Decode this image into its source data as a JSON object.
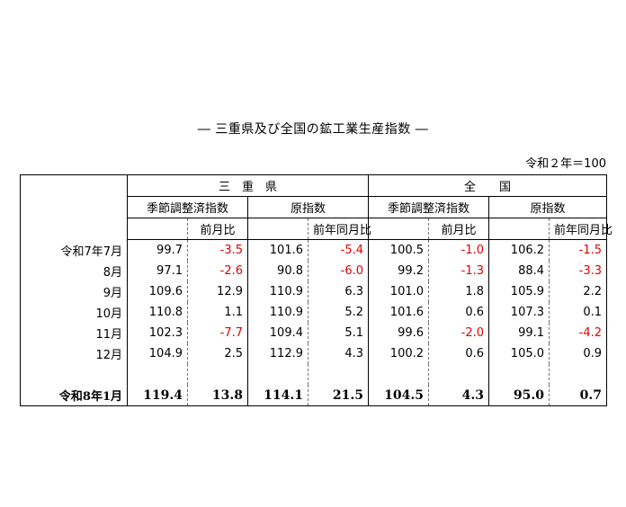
{
  "title": "― 三重県及び全国の鉱工業生産指数 ―",
  "base_note": "令和２年＝100",
  "headers": {
    "region_mie": "三　重　県",
    "region_national": "全　　国",
    "seasonally_adjusted": "季節調整済指数",
    "original": "原指数",
    "mom": "前月比",
    "yoy": "前年同月比"
  },
  "rows": [
    {
      "label": "令和7年7月",
      "mie_sa": "99.7",
      "mie_mom": "-3.5",
      "mie_orig": "101.6",
      "mie_yoy": "-5.4",
      "nat_sa": "100.5",
      "nat_mom": "-1.0",
      "nat_orig": "106.2",
      "nat_yoy": "-1.5"
    },
    {
      "label": "8月",
      "mie_sa": "97.1",
      "mie_mom": "-2.6",
      "mie_orig": "90.8",
      "mie_yoy": "-6.0",
      "nat_sa": "99.2",
      "nat_mom": "-1.3",
      "nat_orig": "88.4",
      "nat_yoy": "-3.3"
    },
    {
      "label": "9月",
      "mie_sa": "109.6",
      "mie_mom": "12.9",
      "mie_orig": "110.9",
      "mie_yoy": "6.3",
      "nat_sa": "101.0",
      "nat_mom": "1.8",
      "nat_orig": "105.9",
      "nat_yoy": "2.2"
    },
    {
      "label": "10月",
      "mie_sa": "110.8",
      "mie_mom": "1.1",
      "mie_orig": "110.9",
      "mie_yoy": "5.2",
      "nat_sa": "101.6",
      "nat_mom": "0.6",
      "nat_orig": "107.3",
      "nat_yoy": "0.1"
    },
    {
      "label": "11月",
      "mie_sa": "102.3",
      "mie_mom": "-7.7",
      "mie_orig": "109.4",
      "mie_yoy": "5.1",
      "nat_sa": "99.6",
      "nat_mom": "-2.0",
      "nat_orig": "99.1",
      "nat_yoy": "-4.2"
    },
    {
      "label": "12月",
      "mie_sa": "104.9",
      "mie_mom": "2.5",
      "mie_orig": "112.9",
      "mie_yoy": "4.3",
      "nat_sa": "100.2",
      "nat_mom": "0.6",
      "nat_orig": "105.0",
      "nat_yoy": "0.9"
    }
  ],
  "latest": {
    "label": "令和8年1月",
    "mie_sa": "119.4",
    "mie_mom": "13.8",
    "mie_orig": "114.1",
    "mie_yoy": "21.5",
    "nat_sa": "104.5",
    "nat_mom": "4.3",
    "nat_orig": "95.0",
    "nat_yoy": "0.7"
  },
  "colors": {
    "negative": "#e00000",
    "text": "#000000"
  }
}
